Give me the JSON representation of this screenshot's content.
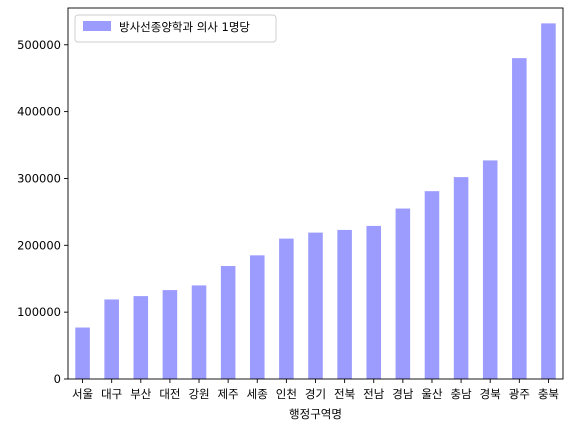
{
  "chart_data": {
    "type": "bar",
    "categories": [
      "서울",
      "대구",
      "부산",
      "대전",
      "강원",
      "제주",
      "세종",
      "인천",
      "경기",
      "전북",
      "전남",
      "경남",
      "울산",
      "충남",
      "경북",
      "광주",
      "충북"
    ],
    "series": [
      {
        "name": "방사선종양학과 의사 1명당",
        "values": [
          77000,
          119000,
          124000,
          133000,
          140000,
          169000,
          185000,
          210000,
          219000,
          223000,
          229000,
          255000,
          281000,
          302000,
          327000,
          480000,
          532000
        ],
        "color": "#9c9cff"
      }
    ],
    "title": "",
    "xlabel": "행정구역명",
    "ylabel": "",
    "ylim": [
      0,
      555000
    ],
    "yticks": [
      0,
      100000,
      200000,
      300000,
      400000,
      500000
    ],
    "grid": false,
    "legend_position": "top-left"
  }
}
